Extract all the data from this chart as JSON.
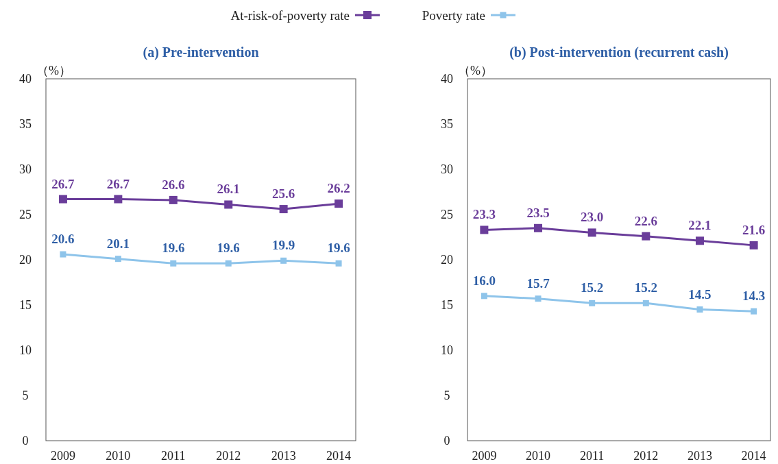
{
  "chart_data": [
    {
      "type": "line",
      "title": "(a) Pre-intervention",
      "ylabel": "（%）",
      "categories": [
        "2009",
        "2010",
        "2011",
        "2012",
        "2013",
        "2014"
      ],
      "ylim": [
        0,
        40
      ],
      "yticks": [
        0,
        5,
        10,
        15,
        20,
        25,
        30,
        35,
        40
      ],
      "grid": false,
      "legend": "top",
      "marker": "square",
      "series": [
        {
          "name": "At-risk-of-poverty rate",
          "color": "#6a3d9a",
          "values": [
            26.7,
            26.7,
            26.6,
            26.1,
            25.6,
            26.2
          ],
          "value_labels": [
            "26.7",
            "26.7",
            "26.6",
            "26.1",
            "25.6",
            "26.2"
          ]
        },
        {
          "name": "Poverty rate",
          "color": "#8ec4ea",
          "values": [
            20.6,
            20.1,
            19.6,
            19.6,
            19.9,
            19.6
          ],
          "value_labels": [
            "20.6",
            "20.1",
            "19.6",
            "19.6",
            "19.9",
            "19.6"
          ]
        }
      ]
    },
    {
      "type": "line",
      "title": "(b) Post-intervention (recurrent cash)",
      "ylabel": "（%）",
      "categories": [
        "2009",
        "2010",
        "2011",
        "2012",
        "2013",
        "2014"
      ],
      "ylim": [
        0,
        40
      ],
      "yticks": [
        0,
        5,
        10,
        15,
        20,
        25,
        30,
        35,
        40
      ],
      "grid": false,
      "marker": "square",
      "series": [
        {
          "color": "#6a3d9a",
          "values": [
            23.3,
            23.5,
            23.0,
            22.6,
            22.1,
            21.6
          ],
          "value_labels": [
            "23.3",
            "23.5",
            "23.0",
            "22.6",
            "22.1",
            "21.6"
          ]
        },
        {
          "color": "#8ec4ea",
          "values": [
            16.0,
            15.7,
            15.2,
            15.2,
            14.5,
            14.3
          ],
          "value_labels": [
            "16.0",
            "15.7",
            "15.2",
            "15.2",
            "14.5",
            "14.3"
          ]
        }
      ]
    }
  ]
}
